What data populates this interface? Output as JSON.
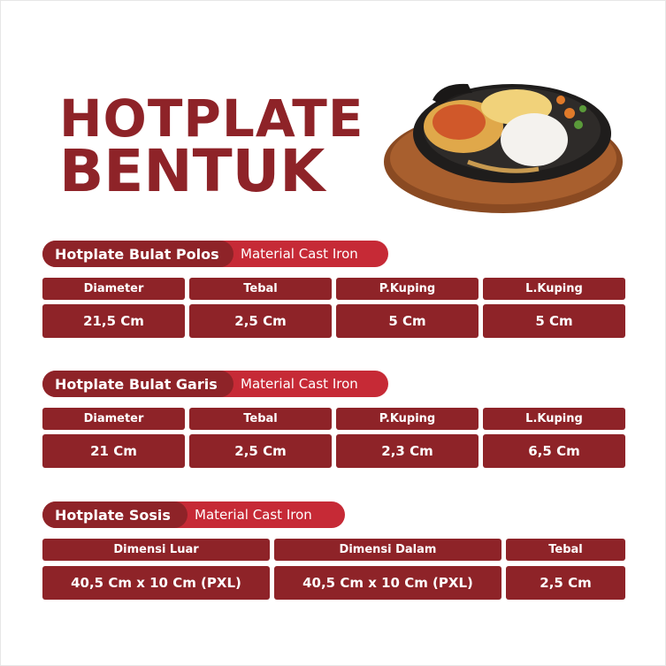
{
  "title": {
    "line1": "HOTPLATE",
    "line2": "BENTUK"
  },
  "colors": {
    "dark_red": "#8e2328",
    "red": "#c62a36"
  },
  "image": "sizzling-hotplate-food-photo",
  "sections": [
    {
      "name": "Hotplate Bulat Polos",
      "material": "Material Cast Iron",
      "headers": [
        "Diameter",
        "Tebal",
        "P.Kuping",
        "L.Kuping"
      ],
      "values": [
        "21,5 Cm",
        "2,5 Cm",
        "5 Cm",
        "5 Cm"
      ]
    },
    {
      "name": "Hotplate Bulat Garis",
      "material": "Material Cast Iron",
      "headers": [
        "Diameter",
        "Tebal",
        "P.Kuping",
        "L.Kuping"
      ],
      "values": [
        "21 Cm",
        "2,5 Cm",
        "2,3 Cm",
        "6,5 Cm"
      ]
    },
    {
      "name": "Hotplate Sosis",
      "material": "Material Cast Iron",
      "headers": [
        "Dimensi Luar",
        "Dimensi Dalam",
        "Tebal"
      ],
      "values": [
        "40,5 Cm x 10 Cm (PXL)",
        "40,5 Cm x 10 Cm (PXL)",
        "2,5 Cm"
      ]
    }
  ]
}
